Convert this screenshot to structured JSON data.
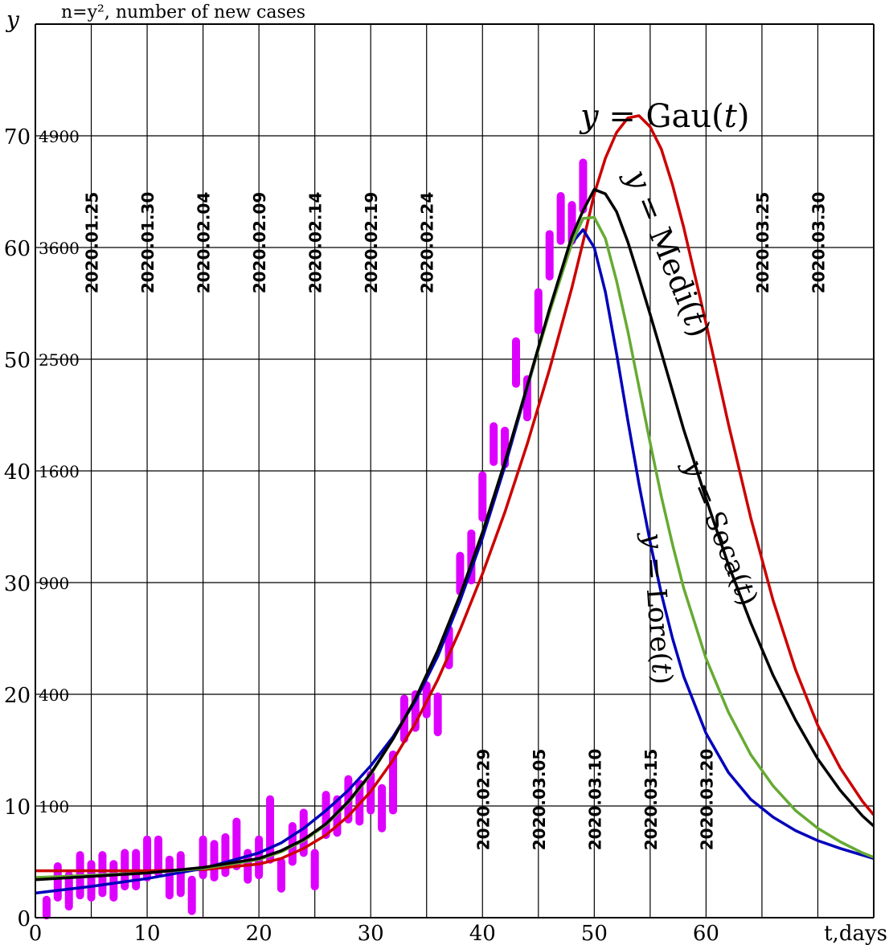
{
  "chart_data": {
    "type": "line",
    "title": "n=y², number of new cases",
    "ylabel": "y",
    "xlabel": "t,days",
    "xlim": [
      0,
      75
    ],
    "ylim": [
      0,
      80
    ],
    "grid": true,
    "x_ticks": [
      0,
      10,
      20,
      30,
      40,
      50,
      60
    ],
    "y_ticks": [
      {
        "y": 0,
        "label": "0",
        "n": ""
      },
      {
        "y": 10,
        "label": "10",
        "n": "100"
      },
      {
        "y": 20,
        "label": "20",
        "n": "400"
      },
      {
        "y": 30,
        "label": "30",
        "n": "900"
      },
      {
        "y": 40,
        "label": "40",
        "n": "1600"
      },
      {
        "y": 50,
        "label": "50",
        "n": "2500"
      },
      {
        "y": 60,
        "label": "60",
        "n": "3600"
      },
      {
        "y": 70,
        "label": "70",
        "n": "4900"
      }
    ],
    "date_markers_upper": [
      {
        "t": 5,
        "label": "2020.01.25"
      },
      {
        "t": 10,
        "label": "2020.01.30"
      },
      {
        "t": 15,
        "label": "2020.02.04"
      },
      {
        "t": 20,
        "label": "2020.02.09"
      },
      {
        "t": 25,
        "label": "2020.02.14"
      },
      {
        "t": 30,
        "label": "2020.02.19"
      },
      {
        "t": 35,
        "label": "2020.02.24"
      },
      {
        "t": 65,
        "label": "2020.03.25"
      },
      {
        "t": 70,
        "label": "2020.03.30"
      }
    ],
    "date_markers_lower": [
      {
        "t": 40,
        "label": "2020.02.29"
      },
      {
        "t": 45,
        "label": "2020.03.05"
      },
      {
        "t": 50,
        "label": "2020.03.10"
      },
      {
        "t": 55,
        "label": "2020.03.15"
      },
      {
        "t": 60,
        "label": "2020.03.20"
      }
    ],
    "series": [
      {
        "name": "y = Gau(t)",
        "color": "#cc0000",
        "x": [
          0,
          5,
          10,
          15,
          20,
          22,
          24,
          26,
          28,
          30,
          32,
          34,
          36,
          38,
          40,
          42,
          44,
          46,
          48,
          49,
          50,
          51,
          52,
          53,
          54,
          55,
          56,
          57,
          58,
          60,
          62,
          64,
          66,
          68,
          70,
          72,
          74,
          75
        ],
        "y": [
          4.2,
          4.2,
          4.2,
          4.3,
          4.8,
          5.3,
          6.2,
          7.4,
          9.1,
          11.3,
          14.1,
          17.4,
          21.3,
          25.8,
          30.8,
          36.3,
          42.4,
          49.1,
          56.4,
          60.5,
          64.8,
          68.0,
          70.3,
          71.6,
          71.8,
          70.8,
          68.8,
          65.6,
          61.8,
          53.2,
          44.2,
          35.8,
          28.4,
          22.2,
          17.2,
          13.4,
          10.4,
          9.2
        ]
      },
      {
        "name": "y = Medi(t)",
        "color": "#000000",
        "x": [
          0,
          5,
          10,
          15,
          20,
          22,
          24,
          26,
          28,
          30,
          32,
          34,
          36,
          38,
          40,
          42,
          44,
          46,
          48,
          49,
          50,
          51,
          52,
          53,
          54,
          55,
          56,
          58,
          60,
          62,
          64,
          66,
          68,
          70,
          72,
          74,
          75
        ],
        "y": [
          3.4,
          3.7,
          4.0,
          4.5,
          5.3,
          6.0,
          7.0,
          8.4,
          10.4,
          12.9,
          16.0,
          19.6,
          23.9,
          28.9,
          34.5,
          40.8,
          47.6,
          54.5,
          61.0,
          63.3,
          65.2,
          64.8,
          63.2,
          60.5,
          57.3,
          54.0,
          50.6,
          43.7,
          37.5,
          31.6,
          26.4,
          21.7,
          17.7,
          14.2,
          11.4,
          9.1,
          8.2
        ]
      },
      {
        "name": "y = Seca(t)",
        "color": "#66aa33",
        "x": [
          0,
          5,
          10,
          15,
          20,
          22,
          24,
          26,
          28,
          30,
          32,
          34,
          36,
          38,
          40,
          42,
          44,
          46,
          48,
          49,
          50,
          51,
          52,
          53,
          54,
          55,
          56,
          57,
          58,
          60,
          62,
          64,
          66,
          68,
          70,
          72,
          74,
          75
        ],
        "y": [
          3.6,
          3.8,
          4.0,
          4.4,
          5.2,
          5.9,
          6.9,
          8.3,
          10.3,
          12.8,
          16.0,
          19.6,
          23.9,
          28.9,
          34.5,
          40.8,
          47.5,
          54.2,
          60.4,
          62.6,
          62.7,
          60.8,
          57.0,
          52.5,
          47.5,
          42.5,
          37.7,
          33.4,
          29.5,
          23.2,
          18.4,
          14.6,
          11.8,
          9.6,
          8.0,
          6.8,
          5.8,
          5.4
        ]
      },
      {
        "name": "y = Lore(t)",
        "color": "#0000bb",
        "x": [
          0,
          5,
          10,
          15,
          20,
          22,
          24,
          26,
          28,
          30,
          32,
          34,
          36,
          38,
          40,
          42,
          44,
          46,
          48,
          49,
          50,
          51,
          52,
          53,
          54,
          55,
          56,
          57,
          58,
          60,
          62,
          64,
          66,
          68,
          70,
          72,
          74,
          75
        ],
        "y": [
          2.2,
          2.8,
          3.5,
          4.4,
          5.8,
          6.7,
          8.0,
          9.6,
          11.4,
          13.6,
          16.2,
          19.4,
          23.4,
          28.4,
          34.0,
          40.4,
          47.4,
          54.4,
          60.4,
          61.6,
          60.0,
          56.0,
          50.5,
          44.5,
          38.8,
          33.6,
          29.0,
          25.0,
          21.6,
          16.5,
          13.0,
          10.6,
          9.0,
          7.8,
          6.9,
          6.2,
          5.6,
          5.3
        ]
      }
    ],
    "observations": {
      "name": "observed",
      "color": "#dd00ff",
      "t": [
        1,
        2,
        3,
        4,
        5,
        6,
        7,
        8,
        9,
        10,
        11,
        12,
        13,
        14,
        15,
        16,
        17,
        18,
        19,
        20,
        21,
        22,
        23,
        24,
        25,
        26,
        27,
        28,
        29,
        30,
        31,
        32,
        33,
        34,
        35,
        36,
        37,
        38,
        39,
        40,
        41,
        42,
        43,
        44,
        45,
        46,
        47,
        48,
        49
      ],
      "y_low": [
        0.2,
        1.8,
        1.0,
        2.0,
        1.8,
        2.2,
        1.8,
        2.8,
        2.8,
        3.6,
        4.0,
        2.0,
        2.2,
        0.6,
        3.8,
        3.6,
        4.0,
        4.6,
        3.4,
        3.8,
        5.2,
        2.6,
        5.0,
        5.8,
        2.8,
        7.4,
        7.6,
        8.8,
        8.6,
        9.6,
        8.0,
        9.6,
        16.0,
        17.0,
        18.2,
        16.6,
        22.6,
        29.2,
        30.2,
        35.8,
        40.8,
        40.6,
        47.8,
        44.8,
        52.6,
        57.4,
        60.6,
        60.6,
        63.4
      ],
      "y_high": [
        1.6,
        4.6,
        3.8,
        5.6,
        4.8,
        5.6,
        4.8,
        5.8,
        5.8,
        7.0,
        7.0,
        5.2,
        5.6,
        3.4,
        7.0,
        6.6,
        7.2,
        8.6,
        5.8,
        7.0,
        10.6,
        5.0,
        8.2,
        9.4,
        5.8,
        11.0,
        10.6,
        12.4,
        12.0,
        12.8,
        11.6,
        14.6,
        19.6,
        20.0,
        20.8,
        19.8,
        25.8,
        32.4,
        34.4,
        39.6,
        44.0,
        43.6,
        51.6,
        48.2,
        56.0,
        61.2,
        64.6,
        63.8,
        67.6
      ]
    },
    "curve_labels": [
      {
        "series": "y = Gau(t)",
        "main": "Gau",
        "t": 58
      },
      {
        "series": "y = Medi(t)",
        "main": "Medi",
        "t": 59
      },
      {
        "series": "y = Seca(t)",
        "main": "Seca",
        "t": 62
      },
      {
        "series": "y = Lore(t)",
        "main": "Lore",
        "t": 59
      }
    ]
  }
}
